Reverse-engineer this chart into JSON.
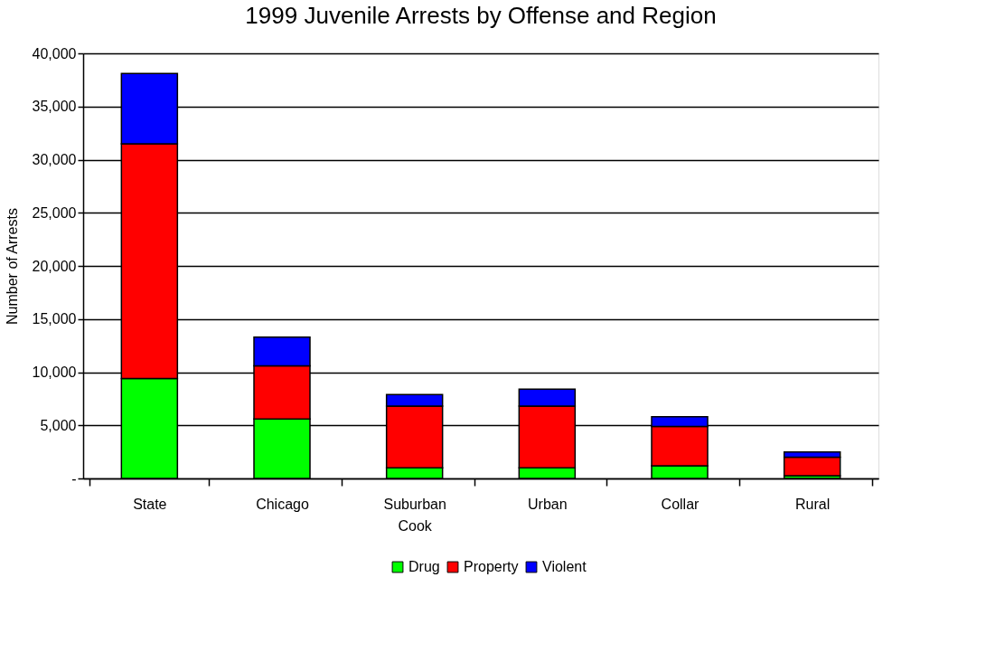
{
  "chart_data": {
    "type": "bar",
    "title": "1999 Juvenile Arrests by Offense and Region",
    "ylabel": "Number of Arrests",
    "categories": [
      "State",
      "Chicago",
      "Suburban Cook",
      "Urban",
      "Collar",
      "Rural"
    ],
    "series": [
      {
        "name": "Drug",
        "color": "#00ff00",
        "values": [
          9400,
          5600,
          1000,
          1000,
          1200,
          250
        ]
      },
      {
        "name": "Property",
        "color": "#ff0000",
        "values": [
          22100,
          5000,
          5800,
          5800,
          3700,
          1750
        ]
      },
      {
        "name": "Violent",
        "color": "#0000ff",
        "values": [
          6600,
          2700,
          1100,
          1600,
          900,
          500
        ]
      }
    ],
    "stacked": true,
    "ylim": [
      0,
      40000
    ],
    "yticks": [
      {
        "value": 0,
        "label": "-"
      },
      {
        "value": 5000,
        "label": "5,000"
      },
      {
        "value": 10000,
        "label": "10,000"
      },
      {
        "value": 15000,
        "label": "15,000"
      },
      {
        "value": 20000,
        "label": "20,000"
      },
      {
        "value": 25000,
        "label": "25,000"
      },
      {
        "value": 30000,
        "label": "30,000"
      },
      {
        "value": 35000,
        "label": "35,000"
      },
      {
        "value": 40000,
        "label": "40,000"
      }
    ],
    "grid": "y",
    "legend": "bottom"
  }
}
